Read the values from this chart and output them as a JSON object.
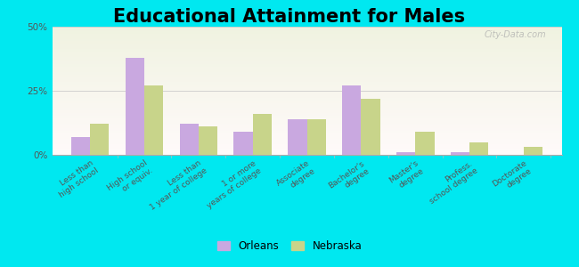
{
  "title": "Educational Attainment for Males",
  "categories": [
    "Less than\nhigh school",
    "High school\nor equiv.",
    "Less than\n1 year of college",
    "1 or more\nyears of college",
    "Associate\ndegree",
    "Bachelor's\ndegree",
    "Master's\ndegree",
    "Profess.\nschool degree",
    "Doctorate\ndegree"
  ],
  "orleans": [
    7,
    38,
    12,
    9,
    14,
    27,
    1,
    1,
    0
  ],
  "nebraska": [
    12,
    27,
    11,
    16,
    14,
    22,
    9,
    5,
    3
  ],
  "orleans_color": "#c9a8e0",
  "nebraska_color": "#c8d48a",
  "background_outer": "#00e8f0",
  "background_inner": "#eaf2e0",
  "ylim": [
    0,
    50
  ],
  "yticks": [
    0,
    25,
    50
  ],
  "ytick_labels": [
    "0%",
    "25%",
    "50%"
  ],
  "bar_width": 0.35,
  "title_fontsize": 15,
  "legend_orleans": "Orleans",
  "legend_nebraska": "Nebraska",
  "watermark": "City-Data.com"
}
